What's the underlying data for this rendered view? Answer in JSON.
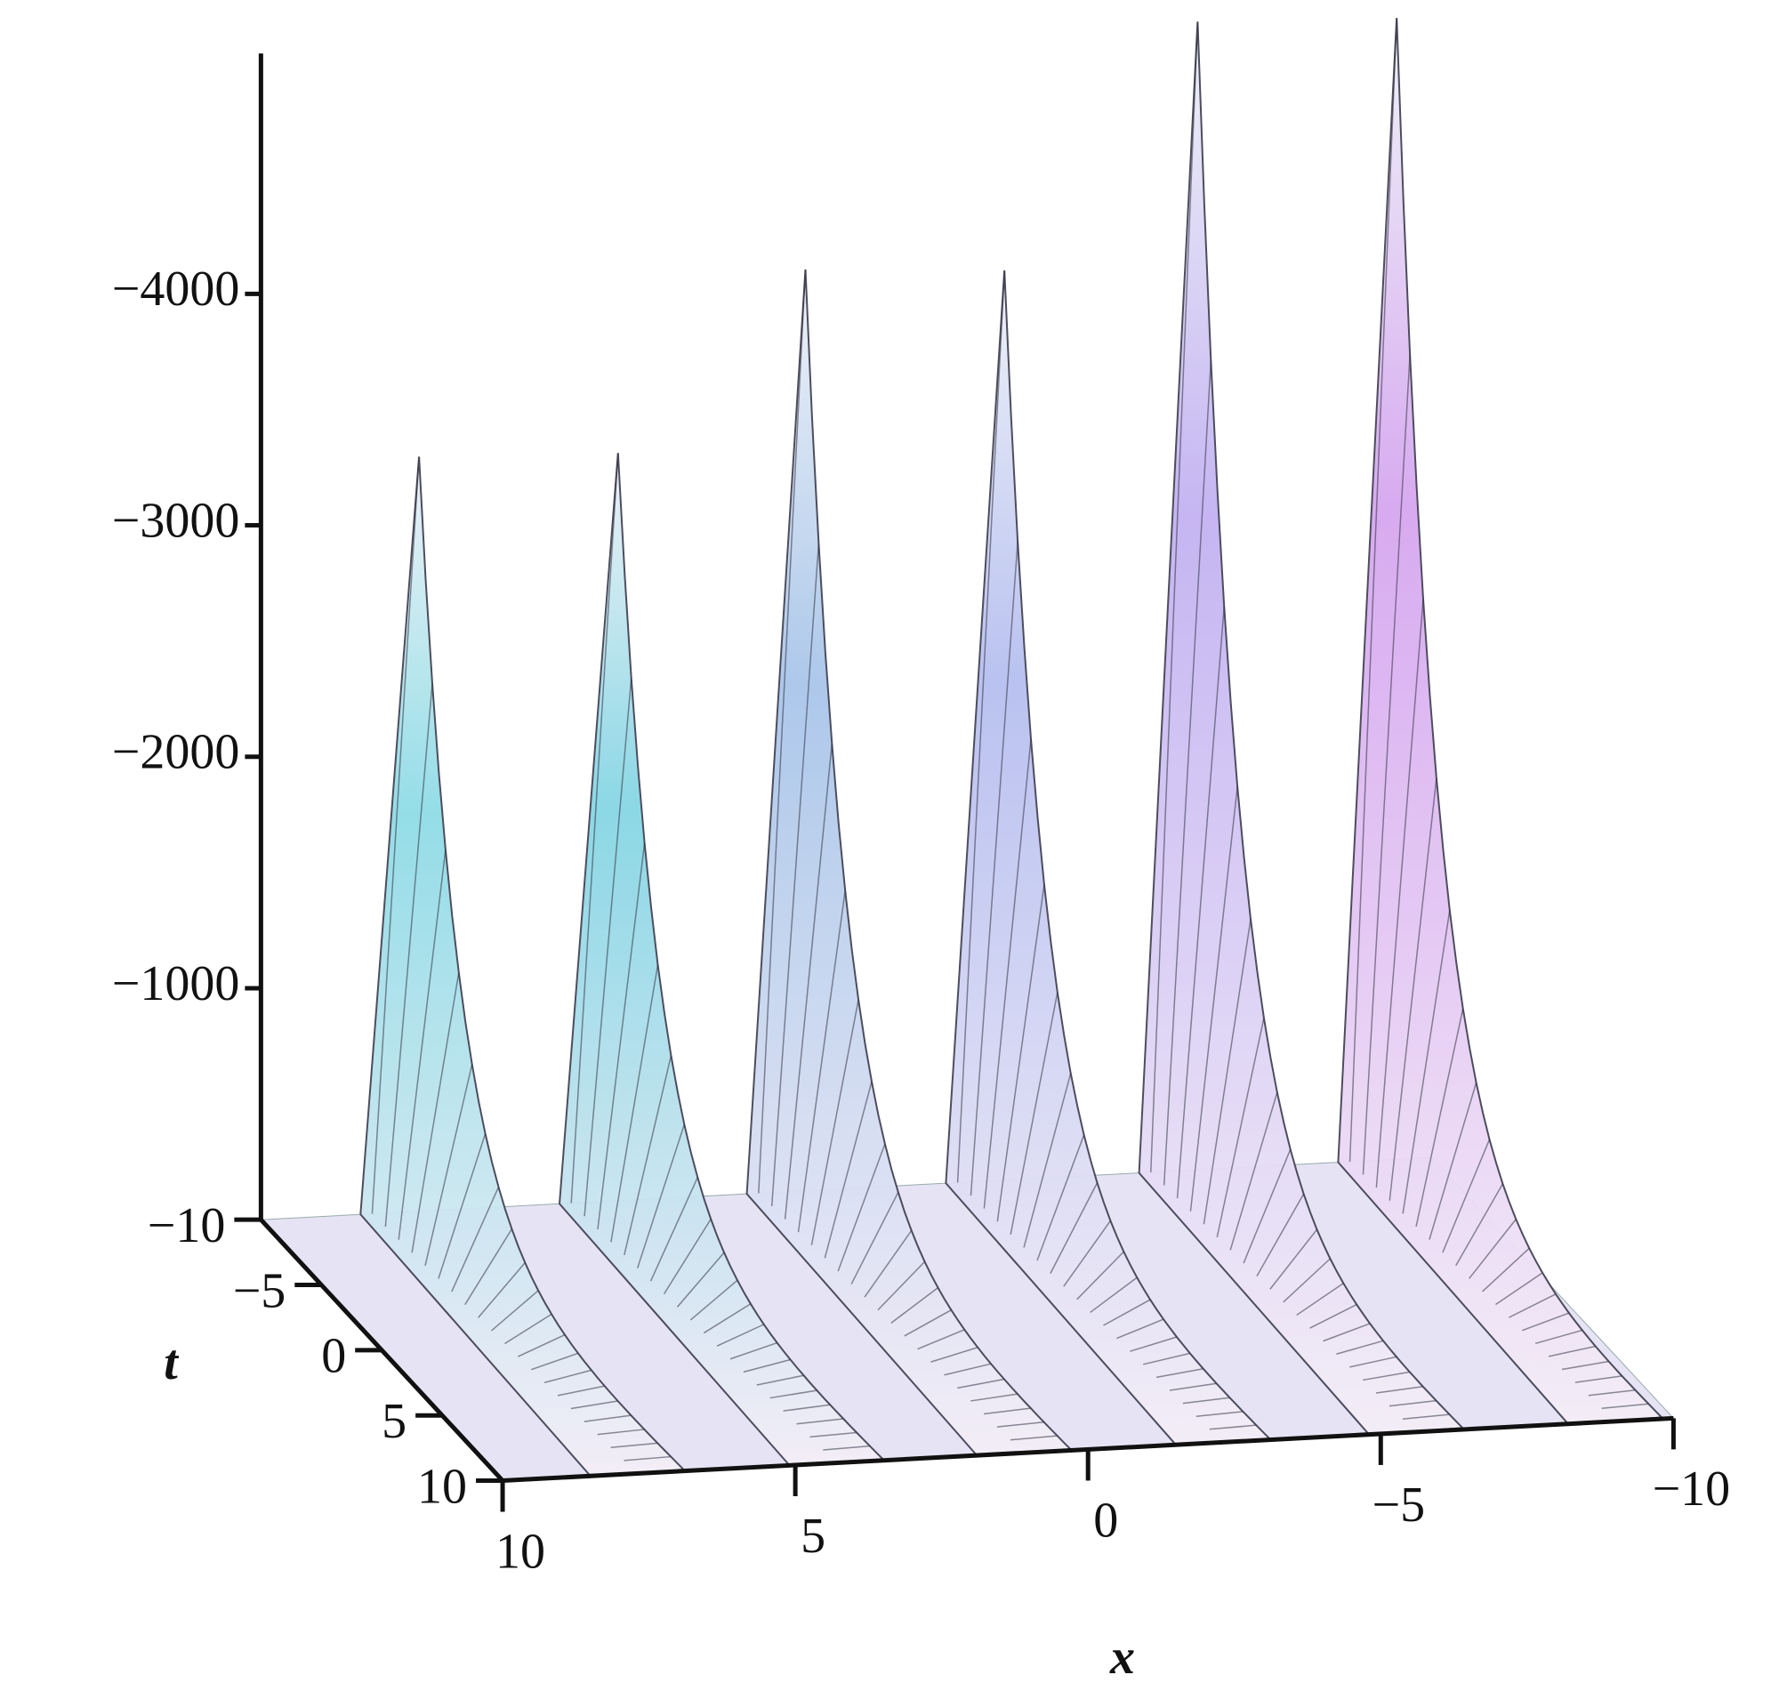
{
  "chart_data": {
    "type": "surface3d",
    "xlabel": "x",
    "tlabel": "t",
    "xlim": [
      10,
      -10
    ],
    "xticks": [
      10,
      5,
      0,
      {
        "value": -5,
        "label": "−5"
      },
      {
        "value": -10,
        "label": "−10"
      }
    ],
    "tlim": [
      -10,
      10
    ],
    "tticks": [
      {
        "value": -10,
        "label": "−10"
      },
      {
        "value": -5,
        "label": "−5"
      },
      0,
      5,
      10
    ],
    "zlim": [
      0,
      -5000
    ],
    "zticks": [
      {
        "value": -1000,
        "label": "−1000"
      },
      {
        "value": -2000,
        "label": "−2000"
      },
      {
        "value": -3000,
        "label": "−3000"
      },
      {
        "value": -4000,
        "label": "−4000"
      }
    ],
    "ridges": {
      "x": [
        7.6,
        4.2,
        1.0,
        -2.4,
        -5.7,
        -9.1
      ],
      "values": [
        -3260,
        -3230,
        -3980,
        -3930,
        -4960,
        -4930
      ],
      "colors": [
        "#8fdce6",
        "#86d6e4",
        "#a9c6ea",
        "#b6bff0",
        "#c3b2f2",
        "#d6a6f0"
      ]
    }
  }
}
